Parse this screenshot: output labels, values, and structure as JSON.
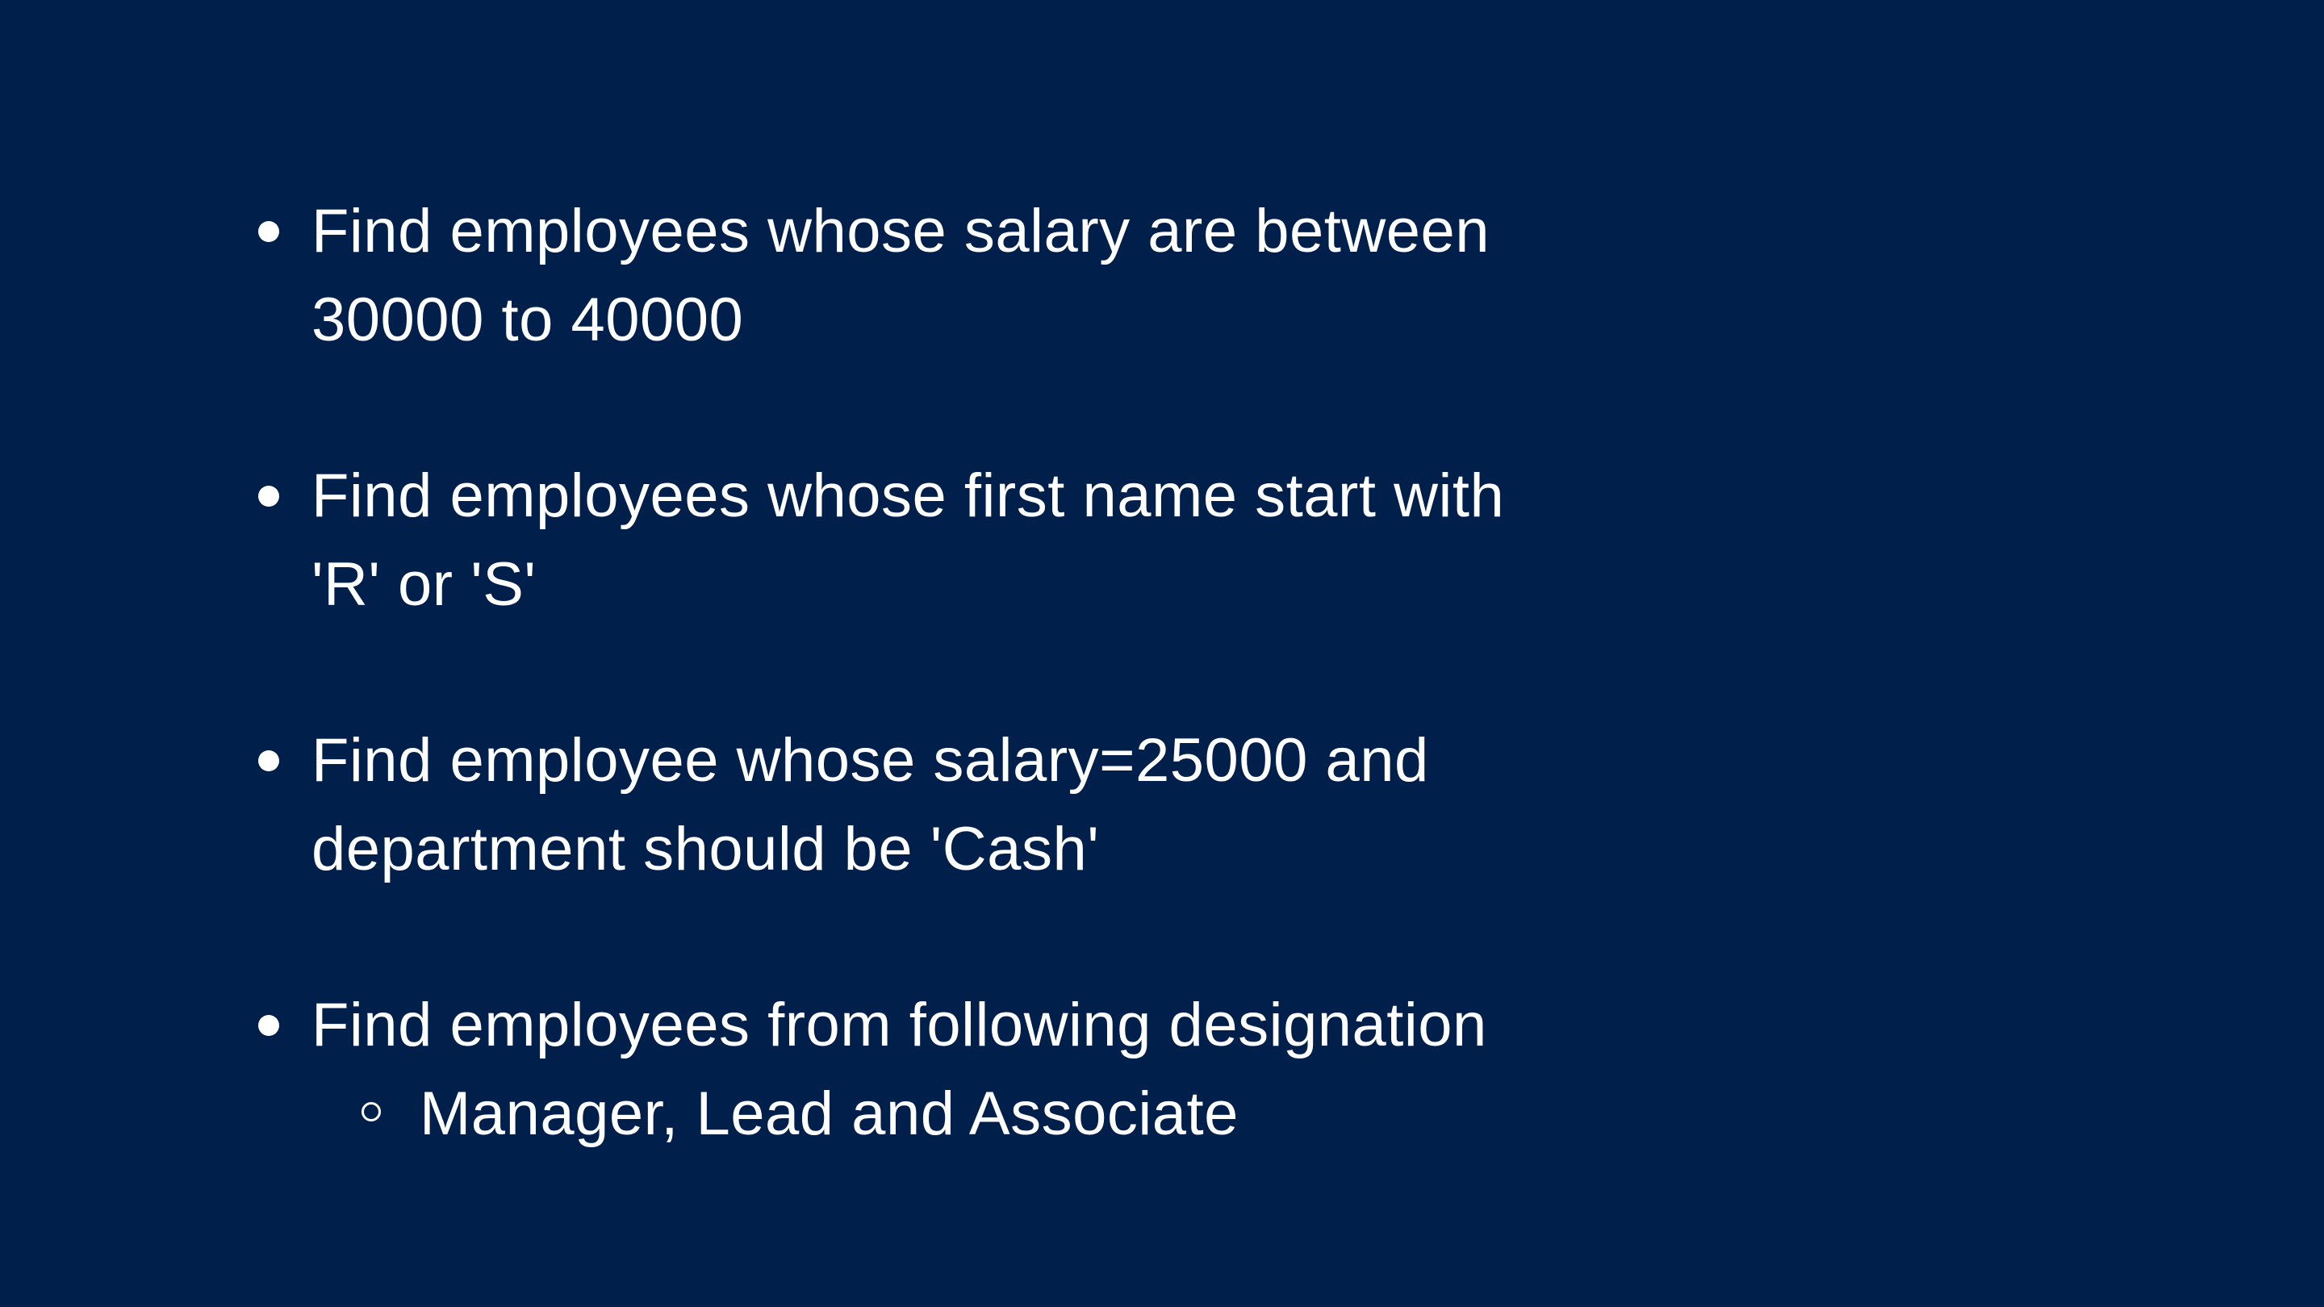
{
  "slide": {
    "background_color": "#001f4b",
    "text_color": "#ffffff",
    "bullets": [
      {
        "lines": [
          "Find employees whose salary are between",
          "30000 to 40000"
        ]
      },
      {
        "lines": [
          "Find employees whose first name start with",
          "'R' or 'S'"
        ]
      },
      {
        "lines": [
          "Find employee whose salary=25000 and",
          "department should be 'Cash'"
        ]
      },
      {
        "lines": [
          "Find employees from following designation"
        ],
        "sub_items": [
          "Manager, Lead and Associate"
        ]
      }
    ]
  }
}
